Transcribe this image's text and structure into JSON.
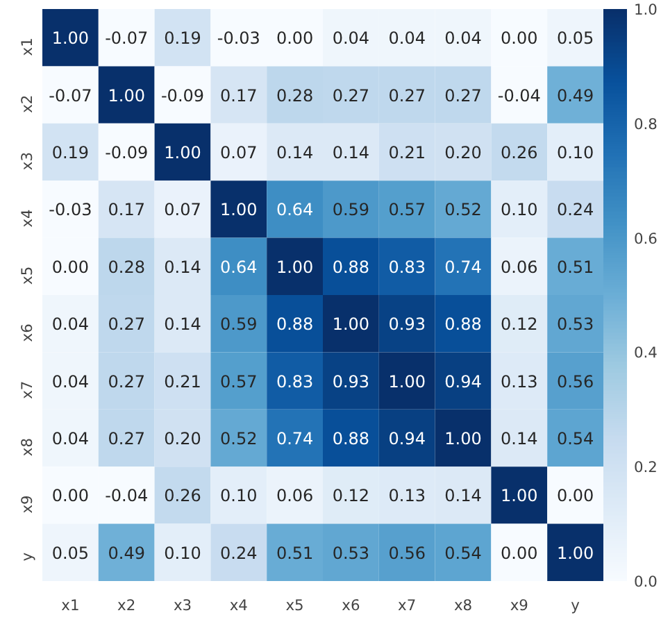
{
  "chart_data": {
    "type": "heatmap",
    "categories": [
      "x1",
      "x2",
      "x3",
      "x4",
      "x5",
      "x6",
      "x7",
      "x8",
      "x9",
      "y"
    ],
    "y_categories": [
      "x1",
      "x2",
      "x3",
      "x4",
      "x5",
      "x6",
      "x7",
      "x8",
      "x9",
      "y"
    ],
    "cells": [
      [
        1.0,
        -0.07,
        0.19,
        -0.03,
        0.0,
        0.04,
        0.04,
        0.04,
        0.0,
        0.05
      ],
      [
        -0.07,
        1.0,
        -0.09,
        0.17,
        0.28,
        0.27,
        0.27,
        0.27,
        -0.04,
        0.49
      ],
      [
        0.19,
        -0.09,
        1.0,
        0.07,
        0.14,
        0.14,
        0.21,
        0.2,
        0.26,
        0.1
      ],
      [
        -0.03,
        0.17,
        0.07,
        1.0,
        0.64,
        0.59,
        0.57,
        0.52,
        0.1,
        0.24
      ],
      [
        0.0,
        0.28,
        0.14,
        0.64,
        1.0,
        0.88,
        0.83,
        0.74,
        0.06,
        0.51
      ],
      [
        0.04,
        0.27,
        0.14,
        0.59,
        0.88,
        1.0,
        0.93,
        0.88,
        0.12,
        0.53
      ],
      [
        0.04,
        0.27,
        0.21,
        0.57,
        0.83,
        0.93,
        1.0,
        0.94,
        0.13,
        0.56
      ],
      [
        0.04,
        0.27,
        0.2,
        0.52,
        0.74,
        0.88,
        0.94,
        1.0,
        0.14,
        0.54
      ],
      [
        0.0,
        -0.04,
        0.26,
        0.1,
        0.06,
        0.12,
        0.13,
        0.14,
        1.0,
        0.0
      ],
      [
        0.05,
        0.49,
        0.1,
        0.24,
        0.51,
        0.53,
        0.56,
        0.54,
        0.0,
        1.0
      ]
    ],
    "cell_labels": [
      [
        "1.00",
        "-0.07",
        "0.19",
        "-0.03",
        "0.00",
        "0.04",
        "0.04",
        "0.04",
        "0.00",
        "0.05"
      ],
      [
        "-0.07",
        "1.00",
        "-0.09",
        "0.17",
        "0.28",
        "0.27",
        "0.27",
        "0.27",
        "-0.04",
        "0.49"
      ],
      [
        "0.19",
        "-0.09",
        "1.00",
        "0.07",
        "0.14",
        "0.14",
        "0.21",
        "0.20",
        "0.26",
        "0.10"
      ],
      [
        "-0.03",
        "0.17",
        "0.07",
        "1.00",
        "0.64",
        "0.59",
        "0.57",
        "0.52",
        "0.10",
        "0.24"
      ],
      [
        "0.00",
        "0.28",
        "0.14",
        "0.64",
        "1.00",
        "0.88",
        "0.83",
        "0.74",
        "0.06",
        "0.51"
      ],
      [
        "0.04",
        "0.27",
        "0.14",
        "0.59",
        "0.88",
        "1.00",
        "0.93",
        "0.88",
        "0.12",
        "0.53"
      ],
      [
        "0.04",
        "0.27",
        "0.21",
        "0.57",
        "0.83",
        "0.93",
        "1.00",
        "0.94",
        "0.13",
        "0.56"
      ],
      [
        "0.04",
        "0.27",
        "0.20",
        "0.52",
        "0.74",
        "0.88",
        "0.94",
        "1.00",
        "0.14",
        "0.54"
      ],
      [
        "0.00",
        "-0.04",
        "0.26",
        "0.10",
        "0.06",
        "0.12",
        "0.13",
        "0.14",
        "1.00",
        "0.00"
      ],
      [
        "0.05",
        "0.49",
        "0.10",
        "0.24",
        "0.51",
        "0.53",
        "0.56",
        "0.54",
        "0.00",
        "1.00"
      ]
    ],
    "clim": [
      0.0,
      1.0
    ],
    "cticks": [
      {
        "value": 0.0,
        "label": "0.0"
      },
      {
        "value": 0.2,
        "label": "0.2"
      },
      {
        "value": 0.4,
        "label": "0.4"
      },
      {
        "value": 0.6,
        "label": "0.6"
      },
      {
        "value": 0.8,
        "label": "0.8"
      },
      {
        "value": 1.0,
        "label": "1.0"
      }
    ],
    "data_labels": true
  }
}
